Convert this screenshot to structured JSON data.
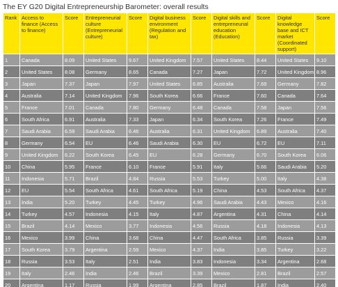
{
  "title": "The EY G20 Digital Entrepreneurship Barometer: overall results",
  "table": {
    "header": [
      "Rank",
      "Access to finance (Access to finance)",
      "Score",
      "Entrepreneurial culture (Entrepreneurial culture)",
      "Score",
      "Digital business environment (Regulation and tax)",
      "Score",
      "Digital skills and entrepreneurial education (Education)",
      "Score",
      "Digital knowledge base and ICT market (Coordinated support)",
      "Score"
    ],
    "rows": [
      [
        "1",
        "Canada",
        "8.09",
        "United States",
        "9.67",
        "United Kingdom",
        "7.57",
        "United States",
        "8.44",
        "United States",
        "9.10"
      ],
      [
        "2",
        "United States",
        "8.08",
        "Germany",
        "8.65",
        "Canada",
        "7.27",
        "Japan",
        "7.72",
        "United Kingdom",
        "8.96"
      ],
      [
        "3",
        "Japan",
        "7.37",
        "Japan",
        "7.97",
        "United States",
        "6.85",
        "Australia",
        "7.69",
        "Germany",
        "7.82"
      ],
      [
        "4",
        "Australia",
        "7.14",
        "United Kingdom",
        "7.96",
        "South Korea",
        "6.66",
        "France",
        "7.60",
        "Canada",
        "7.64"
      ],
      [
        "5",
        "France",
        "7.01",
        "Canada",
        "7.80",
        "Germany",
        "6.48",
        "Canada",
        "7.58",
        "Japan",
        "7.56"
      ],
      [
        "6",
        "South Africa",
        "6.91",
        "Australia",
        "7.33",
        "Japan",
        "6.34",
        "South Korea",
        "7.26",
        "France",
        "7.49"
      ],
      [
        "7",
        "Saudi Arabia",
        "6.59",
        "Saudi Arabia",
        "6.46",
        "Australia",
        "6.31",
        "United Kingdom",
        "6.89",
        "Australia",
        "7.40"
      ],
      [
        "8",
        "Germany",
        "6.54",
        "EU",
        "6.46",
        "Saudi Arabia",
        "6.30",
        "EU",
        "6.72",
        "EU",
        "7.11"
      ],
      [
        "9",
        "United Kingdom",
        "6.22",
        "South Korea",
        "6.45",
        "EU",
        "6.28",
        "Germany",
        "6.70",
        "South Korea",
        "6.06"
      ],
      [
        "10",
        "China",
        "5.95",
        "France",
        "6.10",
        "France",
        "5.91",
        "Italy",
        "5.66",
        "Saudi Arabia",
        "5.20"
      ],
      [
        "11",
        "Indonesia",
        "5.71",
        "Brazil",
        "4.84",
        "Russia",
        "5.53",
        "Turkey",
        "5.00",
        "Italy",
        "4.38"
      ],
      [
        "12",
        "EU",
        "5.54",
        "South Africa",
        "4.61",
        "South Africa",
        "5.19",
        "China",
        "4.53",
        "South Africa",
        "4.37"
      ],
      [
        "13",
        "India",
        "5.20",
        "Turkey",
        "4.45",
        "Turkey",
        "4.96",
        "Saudi Arabia",
        "4.43",
        "Mexico",
        "4.16"
      ],
      [
        "14",
        "Turkey",
        "4.57",
        "Indonesia",
        "4.15",
        "Italy",
        "4.87",
        "Argentina",
        "4.31",
        "China",
        "4.14"
      ],
      [
        "15",
        "Brazil",
        "4.14",
        "Mexico",
        "3.77",
        "Indonesia",
        "4.56",
        "Russia",
        "4.18",
        "Indonesia",
        "4.13"
      ],
      [
        "16",
        "Mexico",
        "3.99",
        "China",
        "3.68",
        "China",
        "4.47",
        "South Africa",
        "3.85",
        "Russia",
        "3.39"
      ],
      [
        "17",
        "South Korea",
        "3.79",
        "Argentina",
        "2.59",
        "Mexico",
        "4.37",
        "India",
        "3.85",
        "Turkey",
        "3.22"
      ],
      [
        "18",
        "Russia",
        "3.53",
        "Italy",
        "2.51",
        "India",
        "3.83",
        "Indonesia",
        "3.34",
        "Argentina",
        "2.68"
      ],
      [
        "19",
        "Italy",
        "2.46",
        "India",
        "2.46",
        "Brazil",
        "3.39",
        "Mexico",
        "2.81",
        "Brazil",
        "2.57"
      ],
      [
        "20",
        "Argentina",
        "1.17",
        "Russia",
        "1.99",
        "Argentina",
        "2.85",
        "Brazil",
        "1.87",
        "India",
        "2.40"
      ]
    ]
  }
}
